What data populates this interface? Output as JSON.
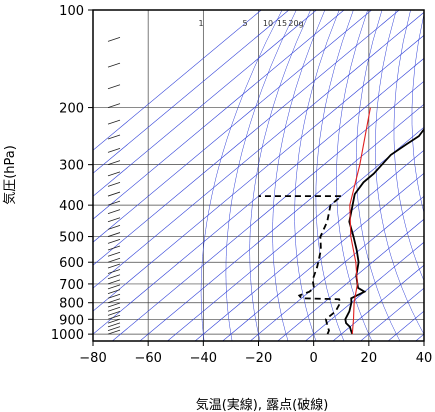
{
  "chart_data": {
    "type": "line",
    "chart_kind": "skew-T log-P diagram",
    "xlabel": "気温(実線), 露点(破線)",
    "ylabel": "気圧(hPa)",
    "xlim": [
      -80,
      40
    ],
    "ylim": [
      1050,
      100
    ],
    "y_scale": "log",
    "x_ticks": [
      "−80",
      "−60",
      "−40",
      "−20",
      "0",
      "20",
      "40"
    ],
    "x_tick_values": [
      -80,
      -60,
      -40,
      -20,
      0,
      20,
      40
    ],
    "y_ticks": [
      "100",
      "200",
      "300",
      "400",
      "500",
      "600",
      "700",
      "800",
      "900",
      "1000"
    ],
    "y_tick_values": [
      100,
      200,
      300,
      400,
      500,
      600,
      700,
      800,
      900,
      1000
    ],
    "mixing_ratio_labels": [
      "1",
      "5",
      "10",
      "15",
      "20g"
    ],
    "grid": true,
    "series": [
      {
        "style": "solid",
        "color": "#000000",
        "points": [
          [
            14,
            1000
          ],
          [
            12,
            975
          ],
          [
            10,
            950
          ],
          [
            7,
            925
          ],
          [
            5,
            900
          ],
          [
            3,
            850
          ],
          [
            0,
            800
          ],
          [
            -2,
            775
          ],
          [
            0,
            740
          ],
          [
            -4,
            720
          ],
          [
            -6,
            700
          ],
          [
            -10,
            660
          ],
          [
            -15,
            600
          ],
          [
            -21,
            550
          ],
          [
            -28,
            500
          ],
          [
            -36,
            450
          ],
          [
            -42,
            400
          ],
          [
            -46,
            370
          ],
          [
            -48,
            340
          ],
          [
            -48,
            320
          ],
          [
            -49,
            300
          ],
          [
            -50,
            280
          ],
          [
            -49,
            260
          ],
          [
            -48,
            245
          ],
          [
            -50,
            225
          ],
          [
            -49,
            200
          ],
          [
            -51,
            180
          ],
          [
            -52,
            160
          ],
          [
            -55,
            140
          ],
          [
            -54,
            125
          ],
          [
            -53,
            118
          ],
          [
            -57,
            108
          ],
          [
            -58,
            100
          ]
        ]
      },
      {
        "style": "dashed",
        "color": "#000000",
        "points": [
          [
            5,
            1000
          ],
          [
            4,
            975
          ],
          [
            2,
            950
          ],
          [
            0,
            925
          ],
          [
            -2,
            900
          ],
          [
            -2,
            850
          ],
          [
            -4,
            800
          ],
          [
            -6,
            780
          ],
          [
            -20,
            775
          ],
          [
            -22,
            760
          ],
          [
            -20,
            740
          ],
          [
            -20,
            720
          ],
          [
            -24,
            680
          ],
          [
            -28,
            620
          ],
          [
            -34,
            550
          ],
          [
            -40,
            500
          ],
          [
            -44,
            450
          ],
          [
            -50,
            400
          ],
          [
            -50,
            375
          ],
          [
            -80,
            375
          ]
        ]
      },
      {
        "style": "solid",
        "color": "#e02020",
        "points": [
          [
            14,
            1000
          ],
          [
            8,
            900
          ],
          [
            1,
            800
          ],
          [
            -6,
            700
          ],
          [
            -16,
            600
          ],
          [
            -29,
            500
          ],
          [
            -43,
            400
          ],
          [
            -57,
            300
          ],
          [
            -78,
            200
          ]
        ]
      }
    ]
  }
}
